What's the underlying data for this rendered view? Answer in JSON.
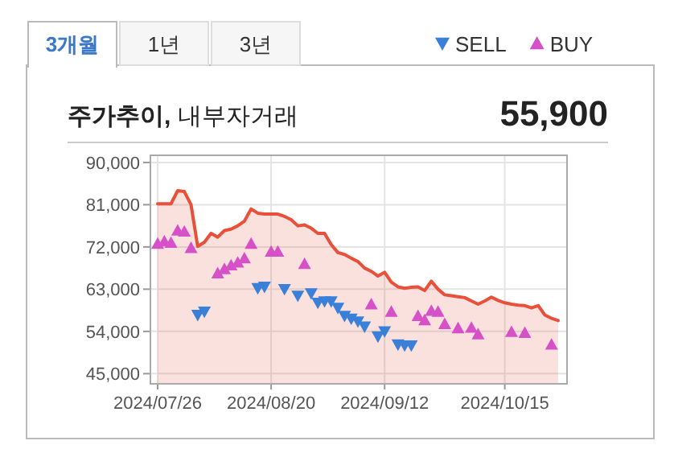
{
  "chart_data": {
    "type": "area",
    "title": "**주가추이,** 내부자거래",
    "annotations": [
      "3개월",
      "1년",
      "3년",
      "55,900"
    ],
    "categories": [
      "2024/07/26",
      null,
      null,
      null,
      null,
      null,
      null,
      null,
      null,
      null,
      null,
      null,
      null,
      null,
      null,
      null,
      null,
      "2024/08/20",
      null,
      null,
      null,
      null,
      null,
      null,
      null,
      null,
      null,
      null,
      null,
      null,
      null,
      null,
      null,
      null,
      "2024/09/12",
      null,
      null,
      null,
      null,
      null,
      null,
      null,
      null,
      null,
      null,
      null,
      null,
      null,
      null,
      null,
      null,
      null,
      "2024/10/15",
      null,
      null,
      null,
      null,
      null,
      null,
      null,
      null
    ],
    "series": [
      {
        "color": "#e8503a",
        "values": [
          81200,
          81200,
          81200,
          84000,
          83800,
          81000,
          72100,
          73000,
          74900,
          74100,
          75500,
          75800,
          76500,
          77500,
          80100,
          79200,
          79000,
          79000,
          79000,
          78500,
          77800,
          76500,
          76700,
          76000,
          74900,
          74900,
          72500,
          70800,
          70400,
          69600,
          68900,
          67500,
          66800,
          65800,
          66600,
          64500,
          63500,
          63200,
          63400,
          63500,
          62700,
          64700,
          63000,
          61800,
          61600,
          61400,
          61200,
          60500,
          59800,
          60500,
          61300,
          60600,
          60100,
          59800,
          59600,
          59500,
          59000,
          59500,
          57500,
          56800,
          56300
        ]
      },
      {
        "name": "SELL",
        "type": "scatter",
        "marker": "triangle-down",
        "color": "#3a7fd8",
        "values": [
          null,
          null,
          null,
          null,
          null,
          null,
          57500,
          58200,
          null,
          null,
          null,
          null,
          null,
          null,
          null,
          63200,
          63500,
          null,
          null,
          63000,
          null,
          61600,
          null,
          62100,
          60100,
          60400,
          60400,
          59000,
          57300,
          56700,
          56100,
          55000,
          null,
          52900,
          54000,
          null,
          51200,
          51000,
          51000,
          null,
          null,
          null,
          null,
          null,
          null,
          null,
          null,
          null,
          null,
          null,
          null,
          null,
          null,
          null,
          null,
          null,
          null,
          null,
          null,
          null,
          null
        ]
      },
      {
        "name": "BUY",
        "type": "scatter",
        "marker": "triangle",
        "color": "#d651c8",
        "values": [
          72700,
          73200,
          72900,
          75500,
          75300,
          71800,
          null,
          null,
          null,
          66400,
          67300,
          68100,
          68700,
          69600,
          72700,
          null,
          null,
          71000,
          71000,
          null,
          null,
          null,
          68400,
          null,
          null,
          null,
          null,
          null,
          null,
          null,
          null,
          null,
          59800,
          null,
          null,
          58200,
          null,
          null,
          null,
          57300,
          56400,
          58400,
          58200,
          55600,
          null,
          54700,
          null,
          54800,
          53400,
          null,
          null,
          null,
          null,
          53900,
          null,
          53700,
          null,
          null,
          null,
          51200,
          null
        ]
      }
    ],
    "ylim": [
      43000,
      91700
    ],
    "yticks": [
      {
        "value": 45000,
        "label": "45,000"
      },
      {
        "value": 54000,
        "label": "54,000"
      },
      {
        "value": 63000,
        "label": "63,000"
      },
      {
        "value": 72000,
        "label": "72,000"
      },
      {
        "value": 81000,
        "label": "81,000"
      },
      {
        "value": 90000,
        "label": "90,000"
      }
    ],
    "grid": true,
    "legend": "top right"
  }
}
